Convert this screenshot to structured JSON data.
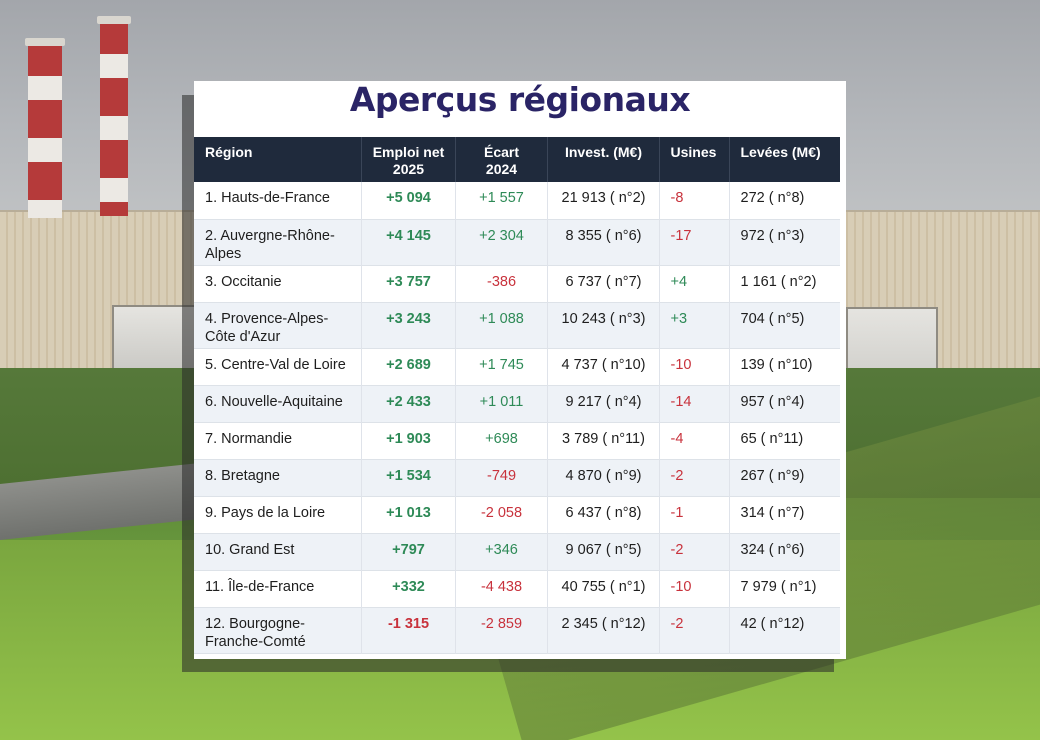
{
  "title": "Aperçus régionaux",
  "colors": {
    "title": "#2a2466",
    "header_bg": "#1f2a3c",
    "positive": "#2e8a57",
    "negative": "#c8323c"
  },
  "headers": {
    "region": "Région",
    "emploi_line1": "Emploi net",
    "emploi_line2": "2025",
    "ecart_line1": "Écart",
    "ecart_line2": "2024",
    "invest": "Invest. (M€)",
    "usines": "Usines",
    "levees": "Levées (M€)"
  },
  "rows": [
    {
      "region": "1. Hauts-de-France",
      "emploi": "+5 094",
      "emploi_sign": "pos",
      "ecart": "+1 557",
      "ecart_sign": "pos",
      "invest": "21 913 ( n°2)",
      "usines": "-8",
      "usines_sign": "neg",
      "levees": "272 ( n°8)"
    },
    {
      "region": "2. Auvergne-Rhône-Alpes",
      "emploi": "+4 145",
      "emploi_sign": "pos",
      "ecart": "+2 304",
      "ecart_sign": "pos",
      "invest": "8 355 ( n°6)",
      "usines": "-17",
      "usines_sign": "neg",
      "levees": "972 ( n°3)"
    },
    {
      "region": "3. Occitanie",
      "emploi": "+3 757",
      "emploi_sign": "pos",
      "ecart": "-386",
      "ecart_sign": "neg",
      "invest": "6 737 ( n°7)",
      "usines": "+4",
      "usines_sign": "pos",
      "levees": "1 161 ( n°2)"
    },
    {
      "region": "4. Provence-Alpes-Côte d'Azur",
      "emploi": "+3 243",
      "emploi_sign": "pos",
      "ecart": "+1 088",
      "ecart_sign": "pos",
      "invest": "10 243 ( n°3)",
      "usines": "+3",
      "usines_sign": "pos",
      "levees": "704 ( n°5)"
    },
    {
      "region": "5. Centre-Val de Loire",
      "emploi": "+2 689",
      "emploi_sign": "pos",
      "ecart": "+1 745",
      "ecart_sign": "pos",
      "invest": "4 737 ( n°10)",
      "usines": "-10",
      "usines_sign": "neg",
      "levees": "139 ( n°10)"
    },
    {
      "region": "6. Nouvelle-Aquitaine",
      "emploi": "+2 433",
      "emploi_sign": "pos",
      "ecart": "+1 011",
      "ecart_sign": "pos",
      "invest": "9 217 ( n°4)",
      "usines": "-14",
      "usines_sign": "neg",
      "levees": "957 ( n°4)"
    },
    {
      "region": "7. Normandie",
      "emploi": "+1 903",
      "emploi_sign": "pos",
      "ecart": "+698",
      "ecart_sign": "pos",
      "invest": "3 789 ( n°11)",
      "usines": "-4",
      "usines_sign": "neg",
      "levees": "65 ( n°11)"
    },
    {
      "region": "8. Bretagne",
      "emploi": "+1 534",
      "emploi_sign": "pos",
      "ecart": "-749",
      "ecart_sign": "neg",
      "invest": "4 870 ( n°9)",
      "usines": "-2",
      "usines_sign": "neg",
      "levees": "267 ( n°9)"
    },
    {
      "region": "9. Pays de la Loire",
      "emploi": "+1 013",
      "emploi_sign": "pos",
      "ecart": "-2 058",
      "ecart_sign": "neg",
      "invest": "6 437 ( n°8)",
      "usines": "-1",
      "usines_sign": "neg",
      "levees": "314 ( n°7)"
    },
    {
      "region": "10. Grand Est",
      "emploi": "+797",
      "emploi_sign": "pos",
      "ecart": "+346",
      "ecart_sign": "pos",
      "invest": "9 067 ( n°5)",
      "usines": "-2",
      "usines_sign": "neg",
      "levees": "324 ( n°6)"
    },
    {
      "region": "11. Île-de-France",
      "emploi": "+332",
      "emploi_sign": "pos",
      "ecart": "-4 438",
      "ecart_sign": "neg",
      "invest": "40 755 ( n°1)",
      "usines": "-10",
      "usines_sign": "neg",
      "levees": "7 979 ( n°1)"
    },
    {
      "region": "12. Bourgogne-Franche-Comté",
      "emploi": "-1 315",
      "emploi_sign": "neg",
      "ecart": "-2 859",
      "ecart_sign": "neg",
      "invest": "2 345 ( n°12)",
      "usines": "-2",
      "usines_sign": "neg",
      "levees": "42 ( n°12)"
    }
  ]
}
